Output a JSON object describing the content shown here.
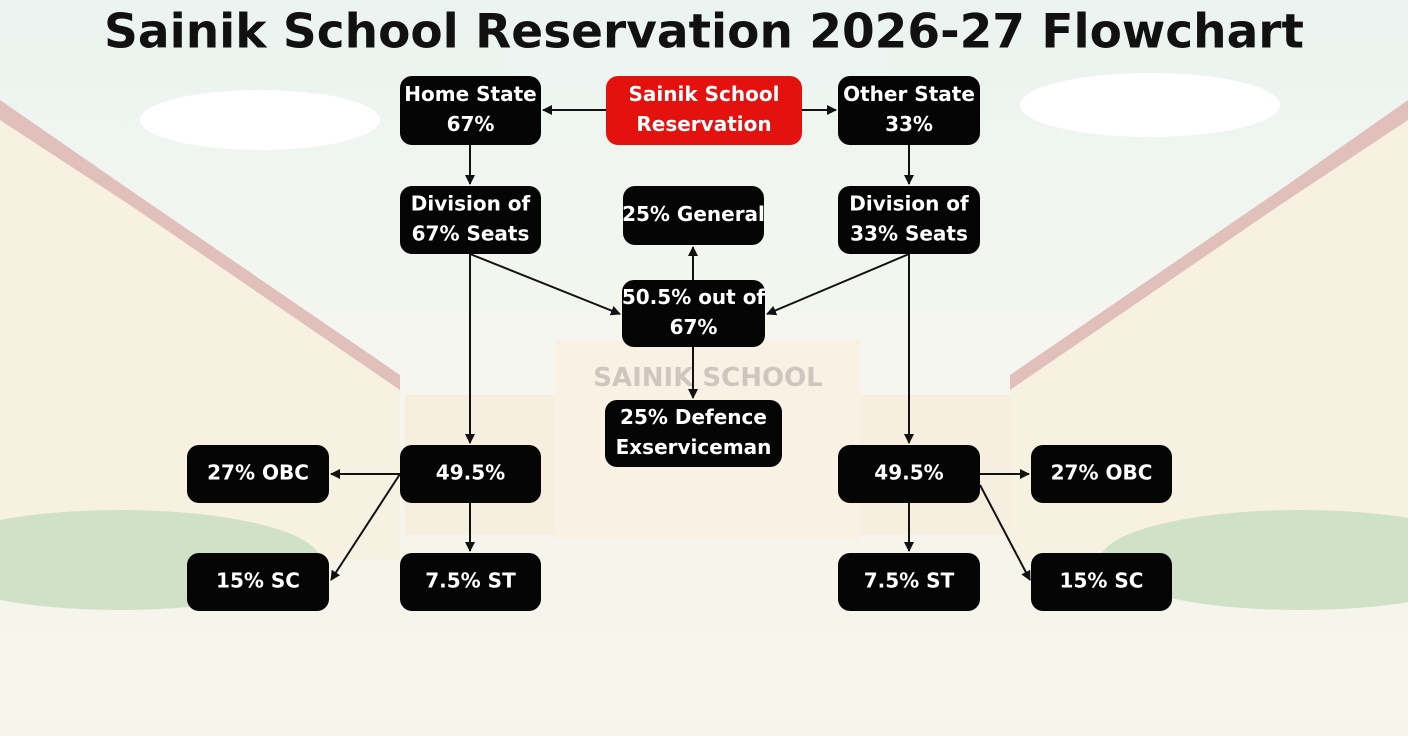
{
  "title": "Sainik School Reservation 2026-27 Flowchart",
  "nodes": [
    {
      "lines": [
        "Sainik School",
        "Reservation"
      ]
    },
    {
      "lines": [
        "Home State",
        "67%"
      ]
    },
    {
      "lines": [
        "Other State",
        "33%"
      ]
    },
    {
      "lines": [
        "Division of",
        "67% Seats"
      ]
    },
    {
      "lines": [
        "25% General"
      ]
    },
    {
      "lines": [
        "Division of",
        "33% Seats"
      ]
    },
    {
      "lines": [
        "50.5% out of",
        "67%"
      ]
    },
    {
      "lines": [
        "25% Defence",
        "Exserviceman"
      ]
    },
    {
      "lines": [
        "27% OBC"
      ]
    },
    {
      "lines": [
        "49.5%"
      ]
    },
    {
      "lines": [
        "49.5%"
      ]
    },
    {
      "lines": [
        "27% OBC"
      ]
    },
    {
      "lines": [
        "15% SC"
      ]
    },
    {
      "lines": [
        "7.5% ST"
      ]
    },
    {
      "lines": [
        "7.5% ST"
      ]
    },
    {
      "lines": [
        "15% SC"
      ]
    }
  ],
  "background_sign": "SAINIK SCHOOL"
}
